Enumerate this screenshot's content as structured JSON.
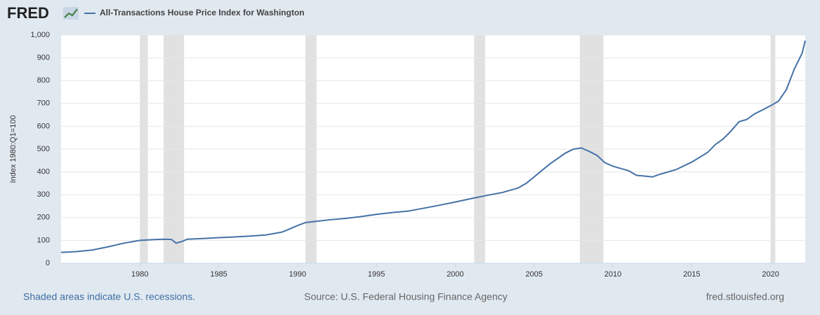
{
  "logo": "FRED",
  "footer": {
    "note": "Shaded areas indicate U.S. recessions.",
    "source": "Source: U.S. Federal Housing Finance Agency",
    "site": "fred.stlouisfed.org"
  },
  "chart_data": {
    "type": "line",
    "y_label": "Index 1980:Q1=100",
    "x": [
      1975,
      1976,
      1977,
      1978,
      1979,
      1980,
      1980.5,
      1981,
      1981.5,
      1982,
      1982.3,
      1982.7,
      1983,
      1984,
      1985,
      1986,
      1987,
      1988,
      1989,
      1989.5,
      1990,
      1990.5,
      1991,
      1992,
      1993,
      1994,
      1995,
      1996,
      1997,
      1998,
      1999,
      2000,
      2001,
      2002,
      2003,
      2004,
      2004.5,
      2005,
      2006,
      2007,
      2007.5,
      2008,
      2008.5,
      2009,
      2009.5,
      2010,
      2010.5,
      2011,
      2011.5,
      2012,
      2012.5,
      2013,
      2014,
      2015,
      2016,
      2016.5,
      2017,
      2017.5,
      2018,
      2018.5,
      2019,
      2019.5,
      2020,
      2020.5,
      2021,
      2021.5,
      2022,
      2022.2
    ],
    "series": [
      {
        "name": "All-Transactions House Price Index for Washington",
        "color": "#4572a7",
        "values": [
          47,
          51,
          58,
          72,
          88,
          100,
          102,
          104,
          105,
          104,
          88,
          96,
          105,
          108,
          112,
          115,
          119,
          124,
          136,
          150,
          165,
          178,
          182,
          190,
          196,
          204,
          214,
          222,
          228,
          241,
          254,
          268,
          283,
          297,
          310,
          330,
          350,
          378,
          435,
          483,
          500,
          505,
          490,
          472,
          440,
          425,
          415,
          405,
          385,
          382,
          378,
          390,
          410,
          443,
          485,
          520,
          545,
          580,
          620,
          630,
          655,
          672,
          690,
          710,
          760,
          850,
          920,
          975
        ]
      }
    ],
    "recessions": [
      [
        1980,
        1980.5
      ],
      [
        1981.5,
        1982.8
      ],
      [
        1990.5,
        1991.2
      ],
      [
        2001.2,
        2001.9
      ],
      [
        2007.9,
        2009.4
      ],
      [
        2020,
        2020.3
      ]
    ],
    "recession_color": "#e1e1e1",
    "xlim": [
      1975,
      2022.2
    ],
    "xticks": [
      1980,
      1985,
      1990,
      1995,
      2000,
      2005,
      2010,
      2015,
      2020
    ],
    "ylim": [
      0,
      1000
    ],
    "yticks": [
      0,
      100,
      200,
      300,
      400,
      500,
      600,
      700,
      800,
      900,
      {
        "value": 1000,
        "label": "1,000"
      }
    ],
    "grid": true
  }
}
